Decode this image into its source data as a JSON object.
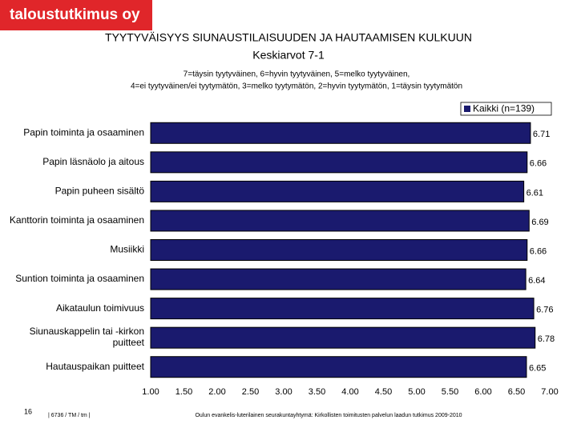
{
  "logo": "taloustutkimus oy",
  "chart_data": {
    "type": "barh",
    "title": "TYYTYVÄISYYS SIUNAUSTILAISUUDEN JA HAUTAAMISEN KULKUUN",
    "subtitle": "Keskiarvot 7-1",
    "notes": [
      "7=täysin tyytyväinen, 6=hyvin tyytyväinen, 5=melko tyytyväinen,",
      "4=ei tyytyväinen/ei tyytymätön, 3=melko tyytymätön, 2=hyvin tyytymätön, 1=täysin tyytymätön"
    ],
    "categories": [
      "Papin toiminta ja osaaminen",
      "Papin läsnäolo ja aitous",
      "Papin puheen sisältö",
      "Kanttorin toiminta ja osaaminen",
      "Musiikki",
      "Suntion toiminta ja osaaminen",
      "Aikataulun toimivuus",
      "Siunauskappelin tai -kirkon\npuitteet",
      "Hautauspaikan puitteet"
    ],
    "series": [
      {
        "name": "Kaikki (n=139)",
        "color": "#1a1a6e",
        "values": [
          6.71,
          6.66,
          6.61,
          6.69,
          6.66,
          6.64,
          6.76,
          6.78,
          6.65
        ]
      }
    ],
    "xlim": [
      1,
      7
    ],
    "xticks": [
      {
        "value": 1,
        "label": "1.00"
      },
      {
        "value": 1.5,
        "label": "1.50"
      },
      {
        "value": 2,
        "label": "2.00"
      },
      {
        "value": 2.5,
        "label": "2.50"
      },
      {
        "value": 3,
        "label": "3.00"
      },
      {
        "value": 3.5,
        "label": "3.50"
      },
      {
        "value": 4,
        "label": "4.00"
      },
      {
        "value": 4.5,
        "label": "4.50"
      },
      {
        "value": 5,
        "label": "5.00"
      },
      {
        "value": 5.5,
        "label": "5.50"
      },
      {
        "value": 6,
        "label": "6.00"
      },
      {
        "value": 6.5,
        "label": "6.50"
      },
      {
        "value": 7,
        "label": "7.00"
      }
    ],
    "legend": "top-right"
  },
  "footer": {
    "page": "16",
    "code": "| 6736 / TM / tm |",
    "source": "Oulun evankelis-luterilainen seurakuntayhtymä: Kirkollisten toimitusten palvelun laadun tutkimus 2009-2010"
  }
}
